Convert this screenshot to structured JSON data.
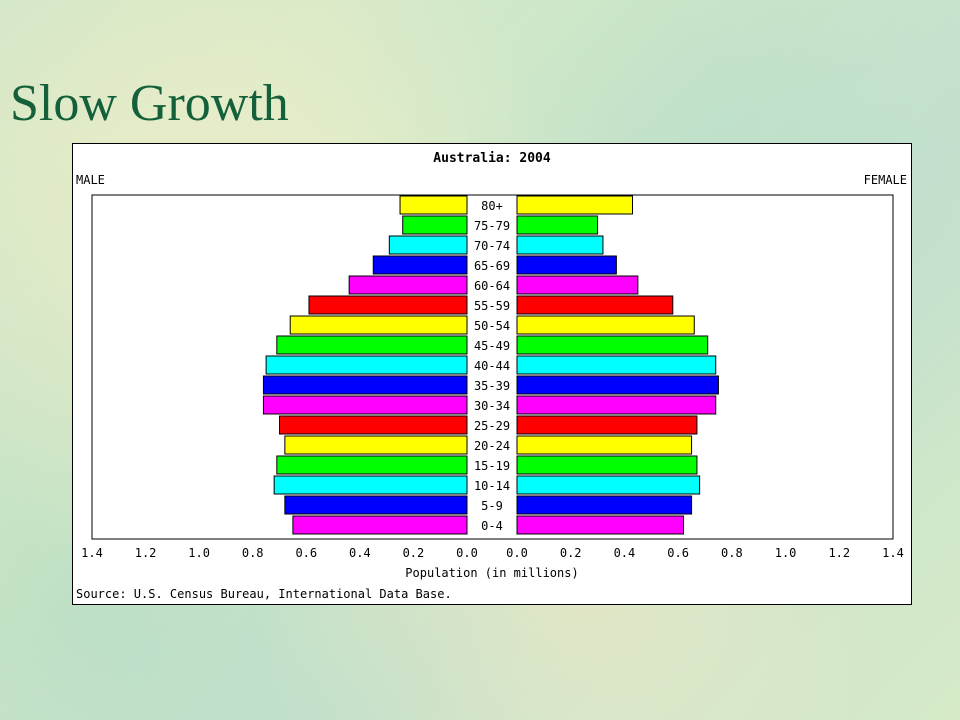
{
  "slide": {
    "title": "Slow Growth"
  },
  "chart_data": {
    "type": "bar",
    "title": "Australia: 2004",
    "left_label": "MALE",
    "right_label": "FEMALE",
    "xlabel": "Population (in millions)",
    "source": "Source: U.S. Census Bureau, International Data Base.",
    "xlim": [
      0,
      1.4
    ],
    "ticks": [
      "1.4",
      "1.2",
      "1.0",
      "0.8",
      "0.6",
      "0.4",
      "0.2",
      "0.0",
      "0.0",
      "0.2",
      "0.4",
      "0.6",
      "0.8",
      "1.0",
      "1.2",
      "1.4"
    ],
    "categories": [
      "0-4",
      "5-9",
      "10-14",
      "15-19",
      "20-24",
      "25-29",
      "30-34",
      "35-39",
      "40-44",
      "45-49",
      "50-54",
      "55-59",
      "60-64",
      "65-69",
      "70-74",
      "75-79",
      "80+"
    ],
    "series": [
      {
        "name": "MALE",
        "values": [
          0.65,
          0.68,
          0.72,
          0.71,
          0.68,
          0.7,
          0.76,
          0.76,
          0.75,
          0.71,
          0.66,
          0.59,
          0.44,
          0.35,
          0.29,
          0.24,
          0.25
        ]
      },
      {
        "name": "FEMALE",
        "values": [
          0.62,
          0.65,
          0.68,
          0.67,
          0.65,
          0.67,
          0.74,
          0.75,
          0.74,
          0.71,
          0.66,
          0.58,
          0.45,
          0.37,
          0.32,
          0.3,
          0.43
        ]
      }
    ],
    "colors": [
      "#ff00ff",
      "#0000ff",
      "#00ffff",
      "#00ff00",
      "#ffff00",
      "#ff0000",
      "#ff00ff",
      "#0000ff",
      "#00ffff",
      "#00ff00",
      "#ffff00",
      "#ff0000",
      "#ff00ff",
      "#0000ff",
      "#00ffff",
      "#00ff00",
      "#ffff00"
    ],
    "grid": false
  }
}
